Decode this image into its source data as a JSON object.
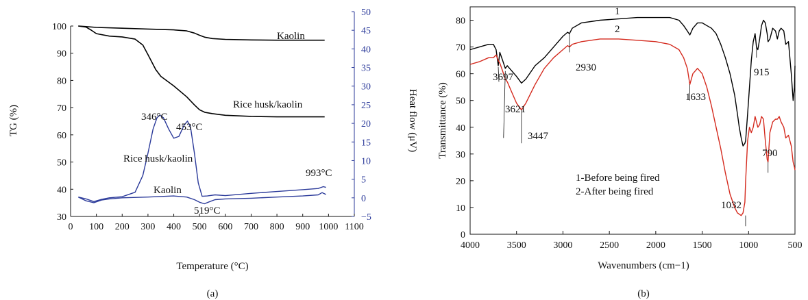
{
  "chart_data": [
    {
      "type": "line",
      "panel_label": "(a)",
      "title": "",
      "xlabel": "Temperature (°C)",
      "ylabel": "TG (%)",
      "ylabel_right": "Heat flow (μV)",
      "xlim": [
        0,
        1100
      ],
      "ylim": [
        30,
        100
      ],
      "ylim_right": [
        -5,
        50
      ],
      "x_ticks": [
        0,
        100,
        200,
        300,
        400,
        500,
        600,
        700,
        800,
        900,
        1000,
        1100
      ],
      "y_ticks": [
        30,
        40,
        50,
        60,
        70,
        80,
        90,
        100
      ],
      "y_ticks_right": [
        -5,
        0,
        5,
        10,
        15,
        20,
        25,
        30,
        35,
        40,
        45,
        50
      ],
      "colors": {
        "tg": "#000000",
        "heat": "#2b3a9a"
      },
      "series": [
        {
          "name": "Kaolin",
          "axis": "left",
          "kind": "TG",
          "x": [
            30,
            60,
            100,
            200,
            300,
            400,
            450,
            480,
            500,
            520,
            550,
            600,
            700,
            800,
            900,
            985
          ],
          "y": [
            100.0,
            99.8,
            99.5,
            99.2,
            98.9,
            98.6,
            98.2,
            97.4,
            96.6,
            95.9,
            95.4,
            95.1,
            94.9,
            94.8,
            94.8,
            94.8
          ]
        },
        {
          "name": "Rice husk/kaolin",
          "axis": "left",
          "kind": "TG",
          "x": [
            30,
            60,
            80,
            100,
            150,
            200,
            250,
            280,
            300,
            330,
            350,
            400,
            450,
            480,
            500,
            520,
            550,
            600,
            700,
            800,
            900,
            985
          ],
          "y": [
            100.0,
            99.6,
            98.5,
            97.2,
            96.3,
            96.0,
            95.2,
            93.0,
            89.5,
            84.0,
            81.5,
            78.0,
            74.0,
            71.0,
            69.2,
            68.3,
            67.8,
            67.2,
            66.8,
            66.6,
            66.6,
            66.6
          ]
        },
        {
          "name": "Rice husk/kaolin",
          "axis": "right",
          "kind": "Heat flow",
          "x": [
            30,
            60,
            90,
            120,
            150,
            200,
            250,
            280,
            300,
            320,
            335,
            346,
            360,
            380,
            400,
            420,
            440,
            453,
            465,
            480,
            495,
            510,
            530,
            560,
            600,
            700,
            800,
            900,
            960,
            980,
            990
          ],
          "y": [
            0.2,
            -0.3,
            -1.0,
            -0.4,
            0.0,
            0.3,
            1.5,
            6.0,
            12.0,
            18.5,
            21.5,
            22.2,
            21.5,
            18.5,
            16.0,
            16.5,
            19.5,
            20.6,
            19.0,
            12.0,
            4.0,
            0.4,
            0.5,
            0.8,
            0.6,
            1.2,
            1.7,
            2.2,
            2.5,
            3.0,
            2.8
          ]
        },
        {
          "name": "Kaolin",
          "axis": "right",
          "kind": "Heat flow",
          "x": [
            30,
            60,
            90,
            120,
            150,
            200,
            300,
            400,
            450,
            480,
            500,
            519,
            540,
            560,
            600,
            700,
            800,
            900,
            960,
            975,
            990
          ],
          "y": [
            0.2,
            -0.8,
            -1.3,
            -0.6,
            -0.3,
            0.0,
            0.2,
            0.5,
            0.2,
            -0.5,
            -1.2,
            -1.6,
            -1.0,
            -0.5,
            -0.3,
            -0.1,
            0.2,
            0.5,
            0.8,
            1.4,
            0.9
          ]
        }
      ],
      "annotations": [
        "Kaolin",
        "Rice husk/kaolin",
        "346°C",
        "453°C",
        "Rice husk/kaolin",
        "Kaolin",
        "519°C",
        "993°C"
      ]
    },
    {
      "type": "line",
      "panel_label": "(b)",
      "title": "",
      "xlabel": "Wavenumbers (cm−1)",
      "ylabel": "Transmittance (%)",
      "xlim": [
        4000,
        500
      ],
      "ylim": [
        0,
        85
      ],
      "x_ticks": [
        4000,
        3500,
        3000,
        2500,
        2000,
        1500,
        1000,
        500
      ],
      "y_ticks": [
        0,
        10,
        20,
        30,
        40,
        50,
        60,
        70,
        80
      ],
      "legend_text": [
        "1-Before being fired",
        "2-After being fired"
      ],
      "colors": {
        "s1": "#000000",
        "s2": "#d42a1e"
      },
      "series": [
        {
          "name": "1",
          "x": [
            4000,
            3900,
            3800,
            3750,
            3720,
            3697,
            3680,
            3650,
            3621,
            3600,
            3550,
            3500,
            3447,
            3400,
            3300,
            3200,
            3100,
            3000,
            2950,
            2930,
            2900,
            2800,
            2600,
            2400,
            2200,
            2000,
            1850,
            1750,
            1700,
            1660,
            1633,
            1600,
            1550,
            1500,
            1450,
            1400,
            1350,
            1300,
            1250,
            1200,
            1150,
            1120,
            1100,
            1080,
            1060,
            1040,
            1032,
            1010,
            990,
            970,
            950,
            930,
            915,
            900,
            880,
            860,
            840,
            820,
            800,
            790,
            770,
            740,
            710,
            690,
            670,
            650,
            620,
            600,
            570,
            540,
            520,
            505,
            500
          ],
          "y": [
            69,
            70,
            71,
            71,
            69,
            63,
            68,
            65,
            62,
            63,
            61,
            59,
            56.5,
            58,
            63,
            66,
            70,
            74,
            75.5,
            75,
            77,
            79,
            80,
            80.5,
            81,
            81,
            81,
            80,
            78,
            76,
            74.5,
            77,
            79,
            79,
            78,
            77,
            75,
            71,
            66,
            60,
            52,
            45,
            40,
            36,
            33,
            34,
            35,
            45,
            55,
            65,
            72,
            75,
            70,
            69,
            73,
            78,
            80,
            79,
            75,
            72,
            73,
            77,
            76,
            73,
            76,
            77,
            76,
            71,
            72,
            60,
            50,
            55,
            63
          ]
        },
        {
          "name": "2",
          "x": [
            4000,
            3900,
            3800,
            3750,
            3720,
            3697,
            3680,
            3650,
            3621,
            3600,
            3550,
            3500,
            3447,
            3400,
            3300,
            3200,
            3100,
            3000,
            2950,
            2930,
            2900,
            2800,
            2600,
            2400,
            2200,
            2000,
            1850,
            1750,
            1700,
            1660,
            1633,
            1600,
            1550,
            1500,
            1450,
            1400,
            1350,
            1300,
            1250,
            1200,
            1150,
            1120,
            1100,
            1080,
            1060,
            1040,
            1032,
            1010,
            990,
            970,
            950,
            930,
            915,
            900,
            880,
            860,
            840,
            820,
            800,
            790,
            770,
            740,
            710,
            690,
            670,
            650,
            620,
            600,
            570,
            540,
            520,
            505,
            500
          ],
          "y": [
            63.5,
            64.5,
            66,
            66,
            67,
            65,
            64,
            61,
            58,
            57,
            53,
            49,
            46.5,
            49,
            56,
            62,
            66,
            69,
            70.5,
            70,
            71,
            72,
            73,
            73,
            72.5,
            72,
            71,
            69,
            66,
            62,
            56,
            60,
            62,
            60,
            55,
            48,
            40,
            32,
            23,
            15,
            10,
            8,
            7.5,
            7,
            8,
            12,
            20,
            35,
            40,
            38,
            40,
            44,
            42,
            40,
            41,
            44,
            43,
            35,
            28,
            27,
            38,
            42,
            43,
            43,
            44,
            42,
            40,
            36,
            37,
            33,
            27,
            25,
            24
          ]
        }
      ],
      "annotations": [
        "1",
        "2",
        "3697",
        "3621",
        "3447",
        "2930",
        "1633",
        "1032",
        "915",
        "790"
      ]
    }
  ]
}
